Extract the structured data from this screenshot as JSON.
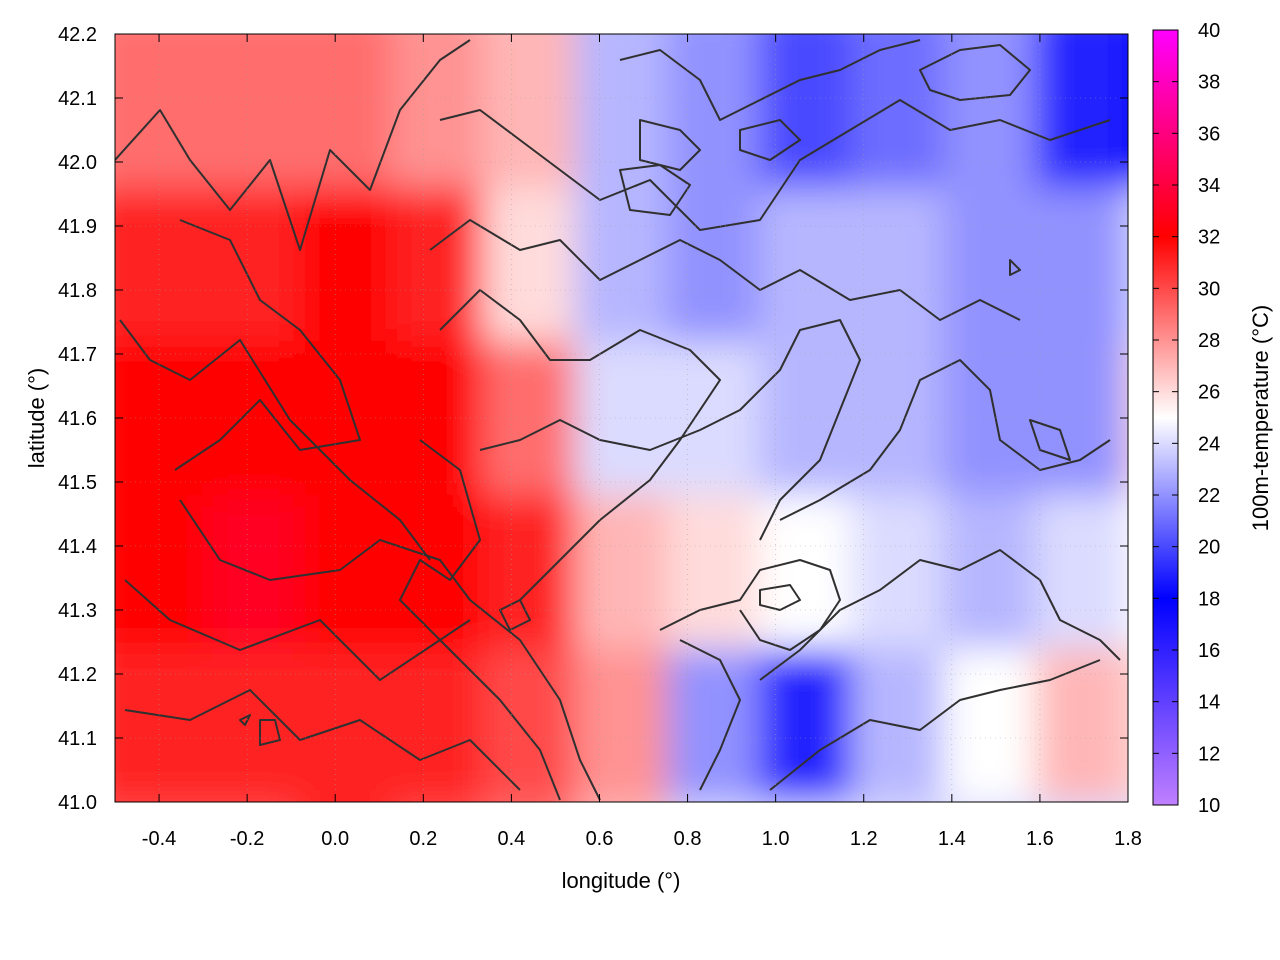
{
  "chart_data": {
    "type": "heatmap",
    "title": "",
    "xlabel": "longitude (°)",
    "ylabel": "latitude (°)",
    "colorbar_label": "100m-temperature (°C)",
    "xlim": [
      -0.5,
      1.8
    ],
    "ylim": [
      41.0,
      42.2
    ],
    "x_ticks": [
      -0.4,
      -0.2,
      0.0,
      0.2,
      0.4,
      0.6,
      0.8,
      1.0,
      1.2,
      1.4,
      1.6,
      1.8
    ],
    "x_tick_labels": [
      "-0.4",
      "-0.2",
      "0.0",
      "0.2",
      "0.4",
      "0.6",
      "0.8",
      "1.0",
      "1.2",
      "1.4",
      "1.6",
      "1.8"
    ],
    "y_ticks": [
      41.0,
      41.1,
      41.2,
      41.3,
      41.4,
      41.5,
      41.6,
      41.7,
      41.8,
      41.9,
      42.0,
      42.1,
      42.2
    ],
    "y_tick_labels": [
      "41.0",
      "41.1",
      "41.2",
      "41.3",
      "41.4",
      "41.5",
      "41.6",
      "41.7",
      "41.8",
      "41.9",
      "42.0",
      "42.1",
      "42.2"
    ],
    "colorbar_range": [
      10,
      40
    ],
    "colorbar_ticks": [
      10,
      12,
      14,
      16,
      18,
      20,
      22,
      24,
      26,
      28,
      30,
      32,
      34,
      36,
      38,
      40
    ],
    "colorbar_tick_labels": [
      "10",
      "12",
      "14",
      "16",
      "18",
      "20",
      "22",
      "24",
      "26",
      "28",
      "30",
      "32",
      "34",
      "36",
      "38",
      "40"
    ],
    "colormap": [
      {
        "value": 10,
        "color": "#c080ff"
      },
      {
        "value": 18,
        "color": "#0000ff"
      },
      {
        "value": 25,
        "color": "#ffffff"
      },
      {
        "value": 32,
        "color": "#ff0000"
      },
      {
        "value": 40,
        "color": "#ff00ff"
      }
    ],
    "grid": true,
    "contour_color": "#303030",
    "temperature_field": {
      "rows": 6,
      "cols": 12,
      "lat_start": 42.2,
      "lat_step": -0.24,
      "lon_start": -0.5,
      "lon_step": 0.209,
      "values": [
        [
          29,
          29,
          29,
          28,
          27,
          23,
          22,
          20,
          21,
          22,
          19,
          18
        ],
        [
          31,
          31,
          32,
          31,
          26,
          23,
          22,
          23,
          23,
          22,
          22,
          24
        ],
        [
          32,
          32,
          32,
          32,
          29,
          24,
          24,
          23,
          23,
          22,
          22,
          26
        ],
        [
          32,
          33,
          32,
          32,
          31,
          27,
          26,
          25,
          24,
          23,
          24,
          25
        ],
        [
          31,
          31,
          31,
          31,
          30,
          28,
          22,
          19,
          23,
          25,
          27,
          26
        ],
        [
          30,
          30,
          31,
          30,
          29,
          27,
          24,
          24,
          24,
          24,
          24,
          24
        ]
      ]
    }
  }
}
